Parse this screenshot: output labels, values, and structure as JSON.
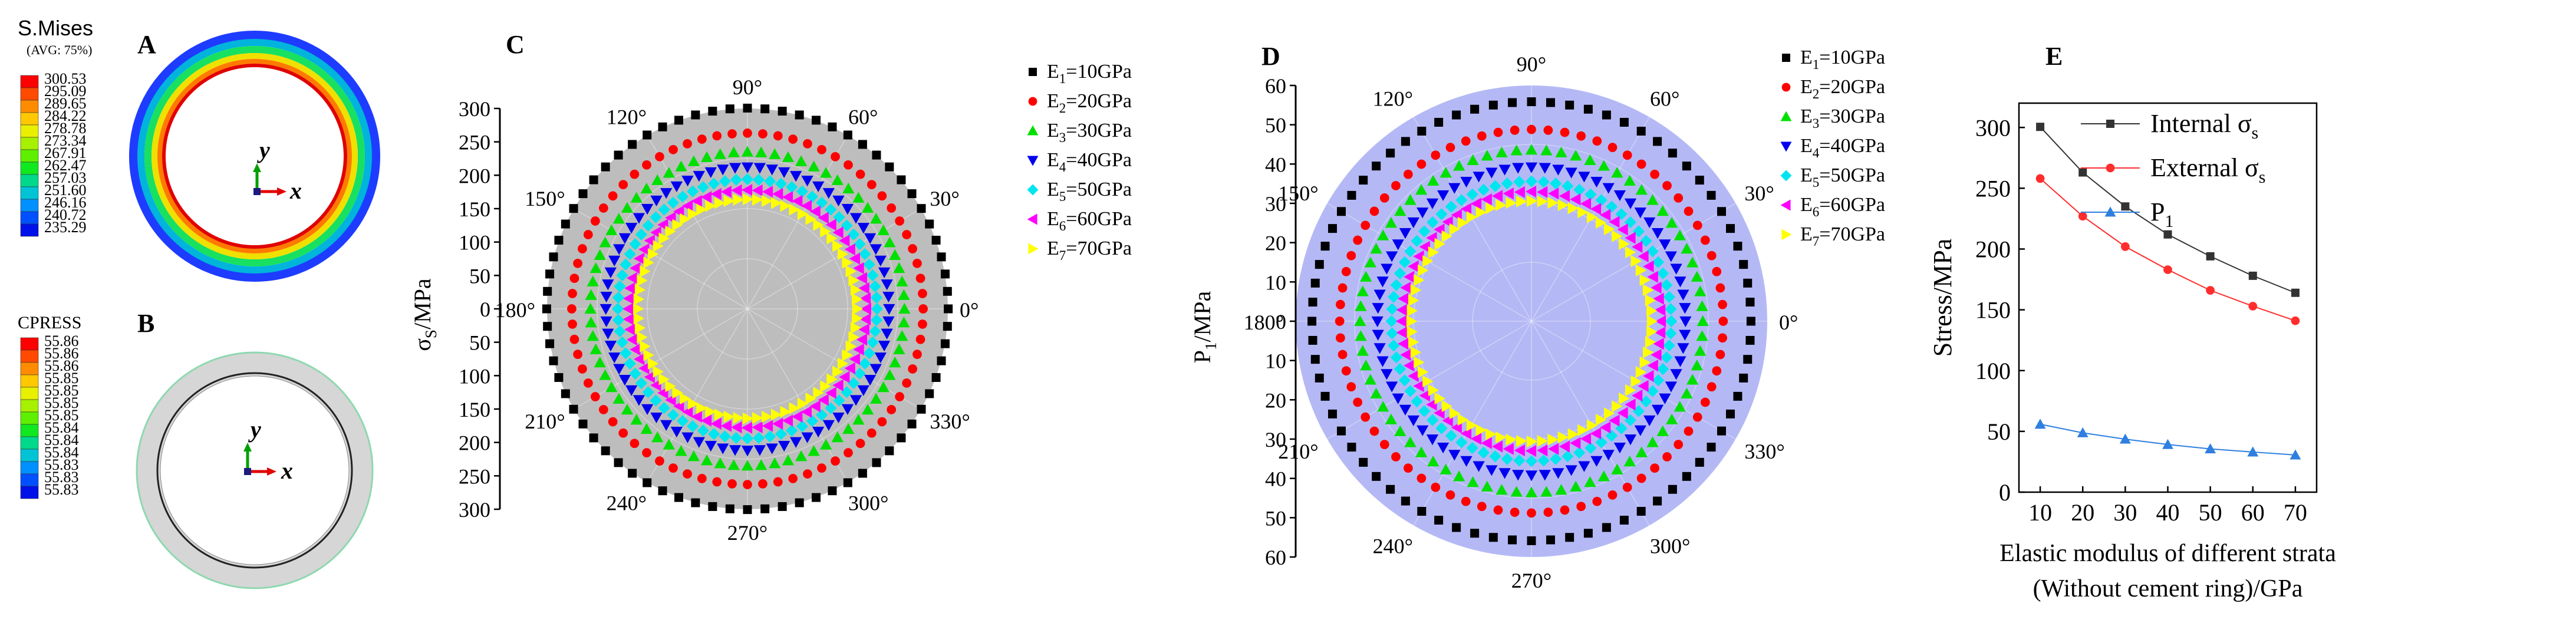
{
  "panel_letters": {
    "a": "A",
    "b": "B",
    "c": "C",
    "d": "D",
    "e": "E"
  },
  "axis_letters": {
    "y": "y",
    "x": "x"
  },
  "mises": {
    "title": "S.Mises",
    "subtitle": "(AVG: 75%)",
    "values": [
      "300.53",
      "295.09",
      "289.65",
      "284.22",
      "278.78",
      "273.34",
      "267.91",
      "262.47",
      "257.03",
      "251.60",
      "246.16",
      "240.72",
      "235.29"
    ],
    "colors": [
      "#ff0000",
      "#ff4a00",
      "#ff8c00",
      "#ffc800",
      "#e8f000",
      "#a6f000",
      "#5ef000",
      "#10e820",
      "#00d88c",
      "#00c4d6",
      "#0090ff",
      "#0050ff",
      "#0010e8"
    ]
  },
  "cpress": {
    "title": "CPRESS",
    "values": [
      "55.86",
      "55.86",
      "55.86",
      "55.85",
      "55.85",
      "55.85",
      "55.85",
      "55.84",
      "55.84",
      "55.84",
      "55.83",
      "55.83",
      "55.83"
    ],
    "colors": [
      "#ff0000",
      "#ff4a00",
      "#ff8c00",
      "#ffc800",
      "#e8f000",
      "#a6f000",
      "#5ef000",
      "#10e820",
      "#00d88c",
      "#00c4d6",
      "#0090ff",
      "#0050ff",
      "#0010e8"
    ]
  },
  "chart_data": [
    {
      "type": "polar-scatter",
      "panel": "C",
      "ylabel_main": "σ",
      "ylabel_sub": "S",
      "ylabel_unit": "/MPa",
      "radial_ticks": [
        "300",
        "250",
        "200",
        "150",
        "100",
        "50",
        "0",
        "50",
        "100",
        "150",
        "200",
        "250",
        "300"
      ],
      "rlim": [
        0,
        300
      ],
      "angle_labels": [
        "0°",
        "30°",
        "60°",
        "90°",
        "120°",
        "150°",
        "180°",
        "210°",
        "240°",
        "270°",
        "300°",
        "330°"
      ],
      "angles_deg": [
        0,
        30,
        60,
        90,
        120,
        150,
        180,
        210,
        240,
        270,
        300,
        330
      ],
      "plot_background": "#bdbdbd",
      "series": [
        {
          "name": "E",
          "sub": "1",
          "unit": "=10GPa",
          "value": 300.53,
          "color": "#000000",
          "marker": "square"
        },
        {
          "name": "E",
          "sub": "2",
          "unit": "=20GPa",
          "value": 263.0,
          "color": "#ff0000",
          "marker": "circle"
        },
        {
          "name": "E",
          "sub": "3",
          "unit": "=30GPa",
          "value": 235.0,
          "color": "#00e000",
          "marker": "triangle-up"
        },
        {
          "name": "E",
          "sub": "4",
          "unit": "=40GPa",
          "value": 212.0,
          "color": "#0000ee",
          "marker": "triangle-down"
        },
        {
          "name": "E",
          "sub": "5",
          "unit": "=50GPa",
          "value": 194.0,
          "color": "#00e5ee",
          "marker": "diamond"
        },
        {
          "name": "E",
          "sub": "6",
          "unit": "=60GPa",
          "value": 178.0,
          "color": "#ff00ff",
          "marker": "triangle-left"
        },
        {
          "name": "E",
          "sub": "7",
          "unit": "=70GPa",
          "value": 164.0,
          "color": "#ffff00",
          "marker": "triangle-right"
        }
      ]
    },
    {
      "type": "polar-scatter",
      "panel": "D",
      "ylabel_main": "P",
      "ylabel_sub": "1",
      "ylabel_unit": "/MPa",
      "radial_ticks": [
        "60",
        "50",
        "40",
        "30",
        "20",
        "10",
        "0",
        "10",
        "20",
        "30",
        "40",
        "50",
        "60"
      ],
      "rlim": [
        0,
        60
      ],
      "angle_labels": [
        "0°",
        "30°",
        "60°",
        "90°",
        "120°",
        "150°",
        "180°",
        "210°",
        "240°",
        "270°",
        "300°",
        "330°"
      ],
      "angles_deg": [
        0,
        30,
        60,
        90,
        120,
        150,
        180,
        210,
        240,
        270,
        300,
        330
      ],
      "plot_background": "#b4b9f5",
      "series": [
        {
          "name": "E",
          "sub": "1",
          "unit": "=10GPa",
          "value": 55.86,
          "color": "#000000",
          "marker": "square"
        },
        {
          "name": "E",
          "sub": "2",
          "unit": "=20GPa",
          "value": 48.8,
          "color": "#ff0000",
          "marker": "circle"
        },
        {
          "name": "E",
          "sub": "3",
          "unit": "=30GPa",
          "value": 43.6,
          "color": "#00e000",
          "marker": "triangle-up"
        },
        {
          "name": "E",
          "sub": "4",
          "unit": "=40GPa",
          "value": 39.2,
          "color": "#0000ee",
          "marker": "triangle-down"
        },
        {
          "name": "E",
          "sub": "5",
          "unit": "=50GPa",
          "value": 35.6,
          "color": "#00e5ee",
          "marker": "diamond"
        },
        {
          "name": "E",
          "sub": "6",
          "unit": "=60GPa",
          "value": 33.0,
          "color": "#ff00ff",
          "marker": "triangle-left"
        },
        {
          "name": "E",
          "sub": "7",
          "unit": "=70GPa",
          "value": 30.6,
          "color": "#ffff00",
          "marker": "triangle-right"
        }
      ]
    },
    {
      "type": "line",
      "panel": "E",
      "ylabel": "Stress/MPa",
      "xlabel_line1": "Elastic modulus of different strata",
      "xlabel_line2": "(Without cement ring)/GPa",
      "x": [
        10,
        20,
        30,
        40,
        50,
        60,
        70
      ],
      "xticks": [
        "10",
        "20",
        "30",
        "40",
        "50",
        "60",
        "70"
      ],
      "yticks": [
        "0",
        "50",
        "100",
        "150",
        "200",
        "250",
        "300"
      ],
      "xlim": [
        5,
        75
      ],
      "ylim": [
        0,
        320
      ],
      "series": [
        {
          "name": "Internal σ",
          "sub": "s",
          "color": "#333333",
          "marker": "square",
          "values": [
            300.5,
            263.0,
            235.0,
            212.0,
            194.0,
            178.0,
            164.0
          ]
        },
        {
          "name": "External σ",
          "sub": "s",
          "color": "#ff2d2d",
          "marker": "circle",
          "values": [
            258.0,
            227.0,
            202.0,
            183.0,
            166.0,
            153.0,
            141.0
          ]
        },
        {
          "name": "P",
          "sub": "1",
          "color": "#2f7fe0",
          "marker": "triangle-up",
          "values": [
            55.86,
            48.8,
            43.6,
            39.2,
            35.6,
            33.0,
            30.6
          ]
        }
      ]
    }
  ]
}
